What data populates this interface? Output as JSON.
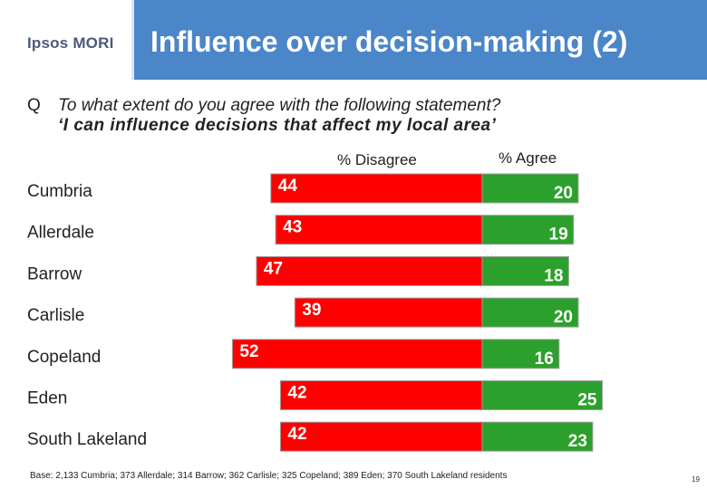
{
  "header": {
    "logo_text": "Ipsos MORI",
    "title": "Influence over decision-making (2)"
  },
  "question": {
    "letter": "Q",
    "line1": "To what extent do you agree with the following statement?",
    "line2": "‘I can influence decisions that affect my local area’"
  },
  "colors": {
    "disagree": "#ff0000",
    "agree": "#2ca02c",
    "title_bar": "#4a86c8"
  },
  "chart_data": {
    "type": "bar",
    "orientation": "horizontal-diverging",
    "categories": [
      "Cumbria",
      "Allerdale",
      "Barrow",
      "Carlisle",
      "Copeland",
      "Eden",
      "South Lakeland"
    ],
    "series": [
      {
        "name": "% Disagree",
        "values": [
          44,
          43,
          47,
          39,
          52,
          42,
          42
        ]
      },
      {
        "name": "% Agree",
        "values": [
          20,
          19,
          18,
          20,
          16,
          25,
          23
        ]
      }
    ]
  },
  "footer": {
    "base": "Base: 2,133 Cumbria; 373 Allerdale; 314 Barrow; 362 Carlisle; 325 Copeland; 389 Eden; 370 South Lakeland residents",
    "page_number": "19"
  }
}
